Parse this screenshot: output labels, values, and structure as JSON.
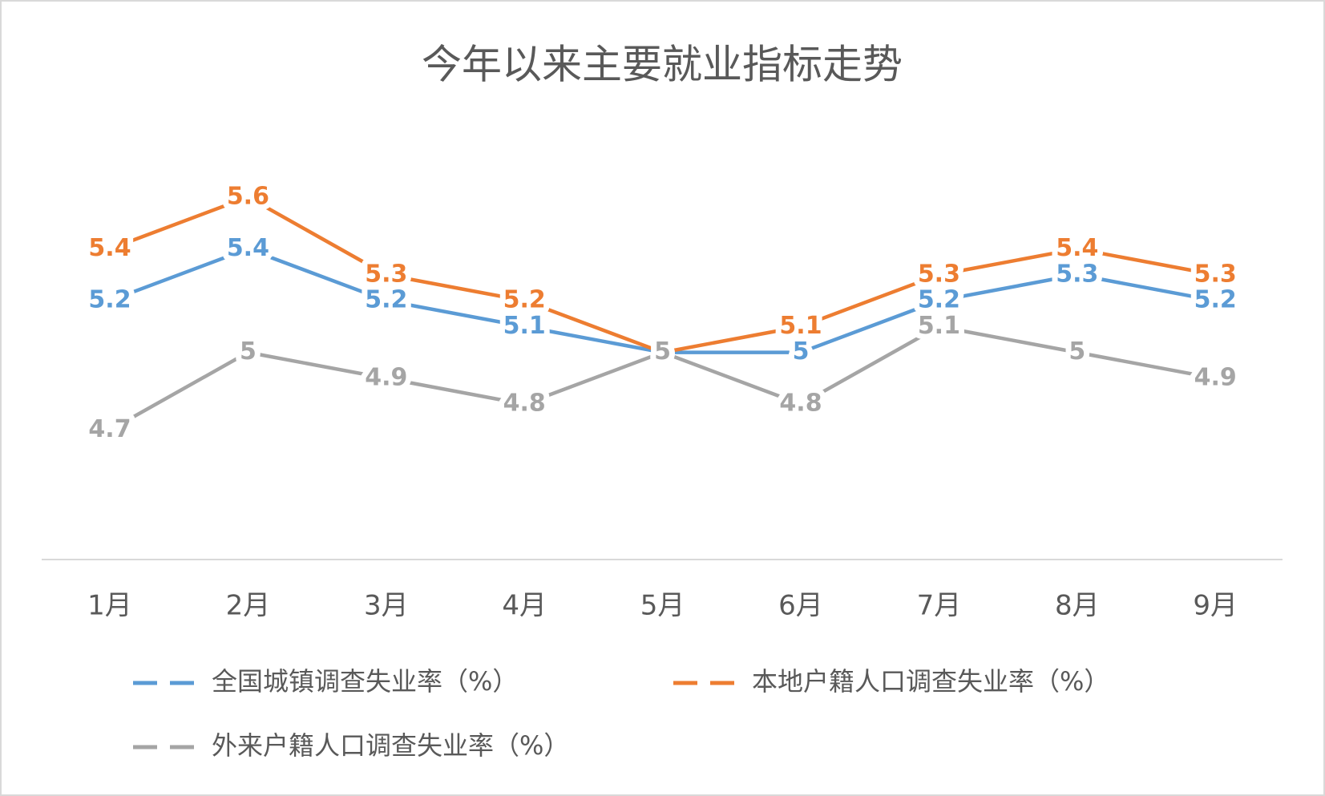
{
  "chart_data": {
    "type": "line",
    "title": "今年以来主要就业指标走势",
    "categories": [
      "1月",
      "2月",
      "3月",
      "4月",
      "5月",
      "6月",
      "7月",
      "8月",
      "9月"
    ],
    "series": [
      {
        "name": "全国城镇调查失业率（%）",
        "color": "#5b9bd5",
        "values": [
          5.2,
          5.4,
          5.2,
          5.1,
          5,
          5,
          5.2,
          5.3,
          5.2
        ]
      },
      {
        "name": "本地户籍人口调查失业率（%）",
        "color": "#ed7d31",
        "values": [
          5.4,
          5.6,
          5.3,
          5.2,
          5,
          5.1,
          5.3,
          5.4,
          5.3
        ]
      },
      {
        "name": "外来户籍人口调查失业率（%）",
        "color": "#a5a5a5",
        "values": [
          4.7,
          5,
          4.9,
          4.8,
          5,
          4.8,
          5.1,
          5,
          4.9
        ]
      }
    ],
    "ylim": [
      4.2,
      5.9
    ],
    "legend": "bottom",
    "data_labels": true
  }
}
